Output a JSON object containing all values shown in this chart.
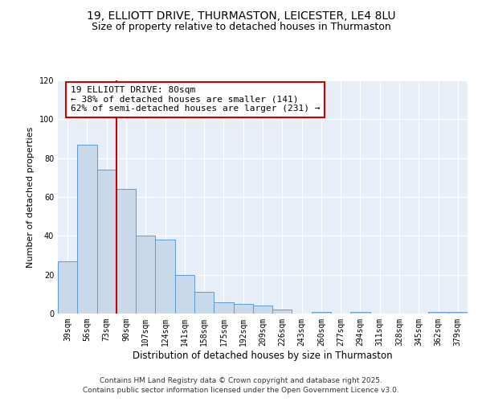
{
  "title": "19, ELLIOTT DRIVE, THURMASTON, LEICESTER, LE4 8LU",
  "subtitle": "Size of property relative to detached houses in Thurmaston",
  "xlabel": "Distribution of detached houses by size in Thurmaston",
  "ylabel": "Number of detached properties",
  "categories": [
    "39sqm",
    "56sqm",
    "73sqm",
    "90sqm",
    "107sqm",
    "124sqm",
    "141sqm",
    "158sqm",
    "175sqm",
    "192sqm",
    "209sqm",
    "226sqm",
    "243sqm",
    "260sqm",
    "277sqm",
    "294sqm",
    "311sqm",
    "328sqm",
    "345sqm",
    "362sqm",
    "379sqm"
  ],
  "values": [
    27,
    87,
    74,
    64,
    40,
    38,
    20,
    11,
    6,
    5,
    4,
    2,
    0,
    1,
    0,
    1,
    0,
    0,
    0,
    1,
    1
  ],
  "bar_color": "#c9d9ec",
  "bar_edge_color": "#5b9bd5",
  "vline_x": 2.5,
  "vline_color": "#cc0000",
  "annotation_line1": "19 ELLIOTT DRIVE: 80sqm",
  "annotation_line2": "← 38% of detached houses are smaller (141)",
  "annotation_line3": "62% of semi-detached houses are larger (231) →",
  "annotation_box_color": "#cc0000",
  "ylim": [
    0,
    120
  ],
  "yticks": [
    0,
    20,
    40,
    60,
    80,
    100,
    120
  ],
  "bg_color": "#ffffff",
  "plot_bg_color": "#e8eef7",
  "grid_color": "#ffffff",
  "footer1": "Contains HM Land Registry data © Crown copyright and database right 2025.",
  "footer2": "Contains public sector information licensed under the Open Government Licence v3.0.",
  "title_fontsize": 10,
  "subtitle_fontsize": 9,
  "xlabel_fontsize": 8.5,
  "ylabel_fontsize": 8,
  "tick_fontsize": 7,
  "annotation_fontsize": 8,
  "footer_fontsize": 6.5
}
